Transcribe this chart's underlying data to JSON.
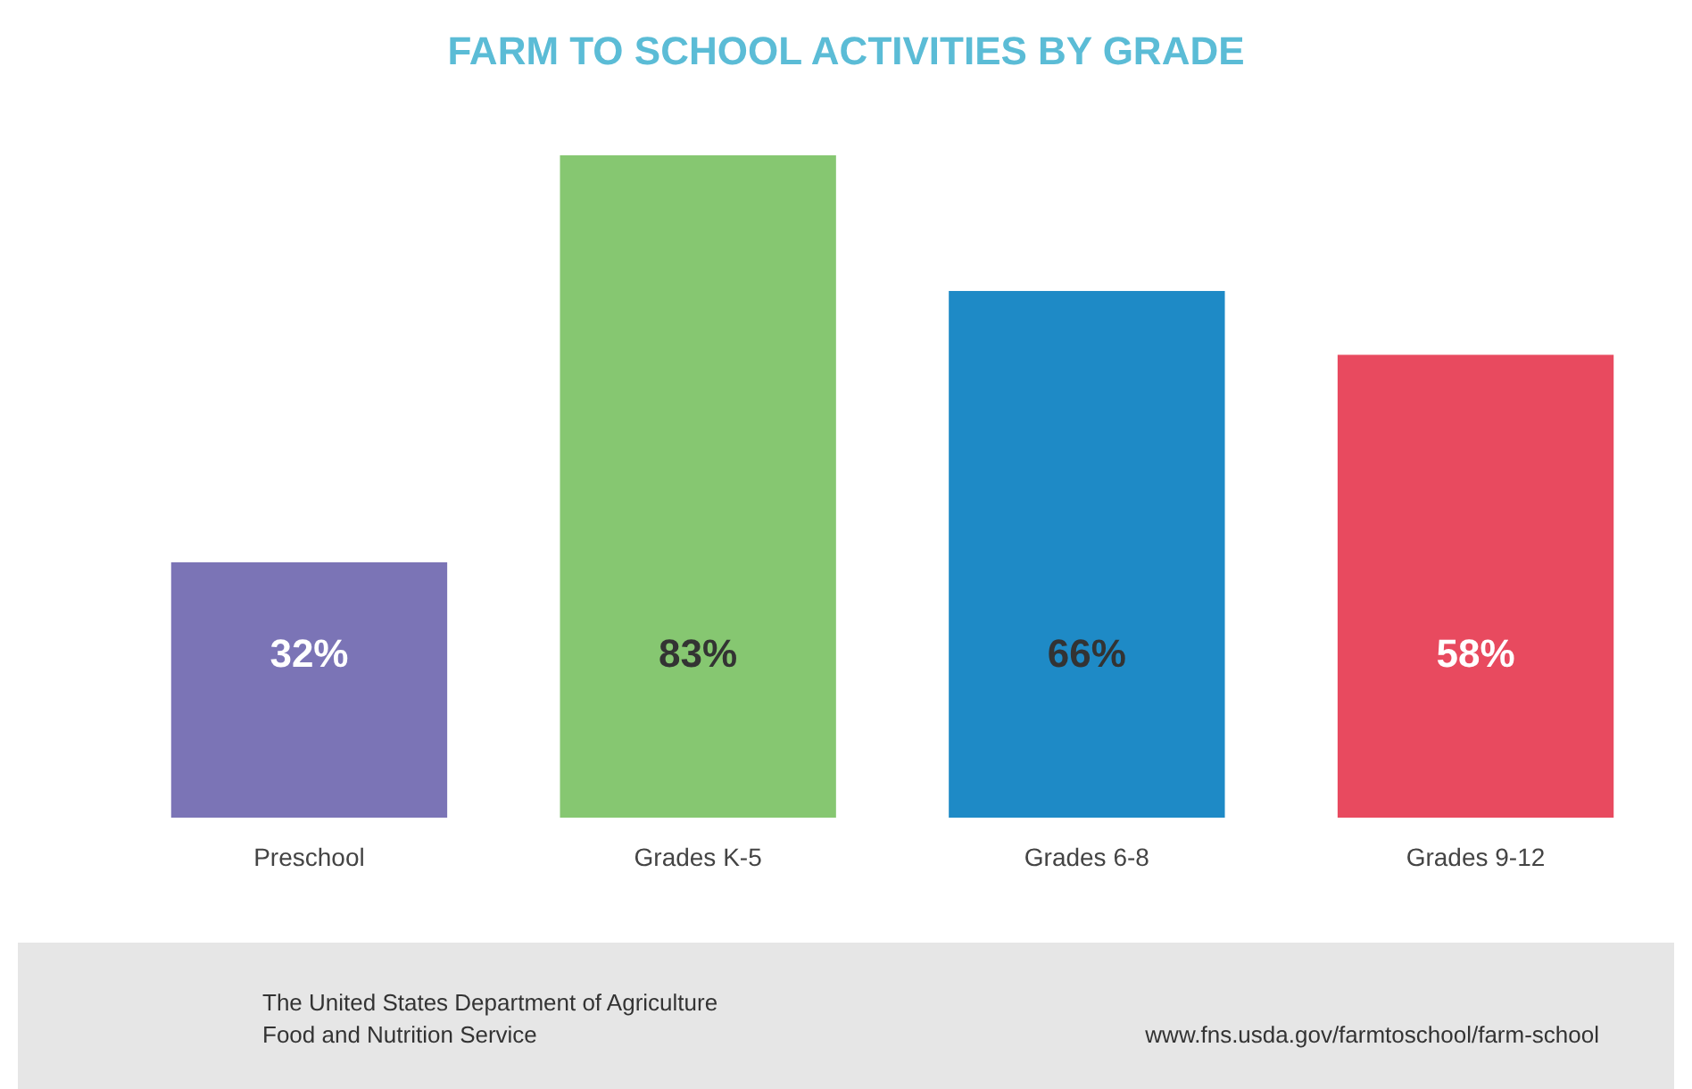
{
  "chart_data": {
    "type": "bar",
    "title": "FARM TO SCHOOL ACTIVITIES BY GRADE",
    "categories": [
      "Preschool",
      "Grades K-5",
      "Grades 6-8",
      "Grades 9-12"
    ],
    "values": [
      32,
      83,
      66,
      58
    ],
    "colors": [
      "#7b74b6",
      "#86c771",
      "#1e8ac6",
      "#e84a5f"
    ],
    "value_labels": [
      "32%",
      "83%",
      "66%",
      "58%"
    ],
    "annotations": [
      "The United States Department of Agriculture",
      "Food and Nutrition Service",
      "www.fns.usda.gov/farmtoschool/farm-school"
    ]
  }
}
